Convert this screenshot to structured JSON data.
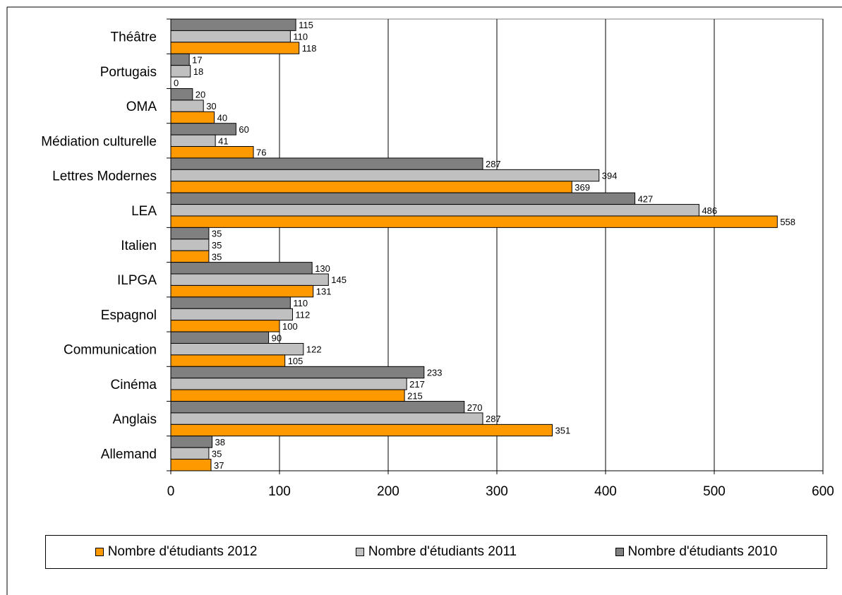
{
  "chart_data": {
    "type": "bar",
    "orientation": "horizontal",
    "categories": [
      "Allemand",
      "Anglais",
      "Cinéma",
      "Communication",
      "Espagnol",
      "ILPGA",
      "Italien",
      "LEA",
      "Lettres Modernes",
      "Médiation culturelle",
      "OMA",
      "Portugais",
      "Théâtre"
    ],
    "series": [
      {
        "name": "Nombre d'étudiants 2012",
        "color": "#FF9900",
        "values": [
          37,
          351,
          215,
          105,
          100,
          131,
          35,
          558,
          369,
          76,
          40,
          0,
          118
        ]
      },
      {
        "name": "Nombre d'étudiants 2011",
        "color": "#C0C0C0",
        "values": [
          35,
          287,
          217,
          122,
          112,
          145,
          35,
          486,
          394,
          41,
          30,
          18,
          110
        ]
      },
      {
        "name": "Nombre d'étudiants 2010",
        "color": "#808080",
        "values": [
          38,
          270,
          233,
          90,
          110,
          130,
          35,
          427,
          287,
          60,
          20,
          17,
          115
        ]
      }
    ],
    "xlim": [
      0,
      600
    ],
    "xticks": [
      0,
      100,
      200,
      300,
      400,
      500,
      600
    ],
    "grid": true,
    "legend_position": "bottom",
    "data_labels": true
  }
}
